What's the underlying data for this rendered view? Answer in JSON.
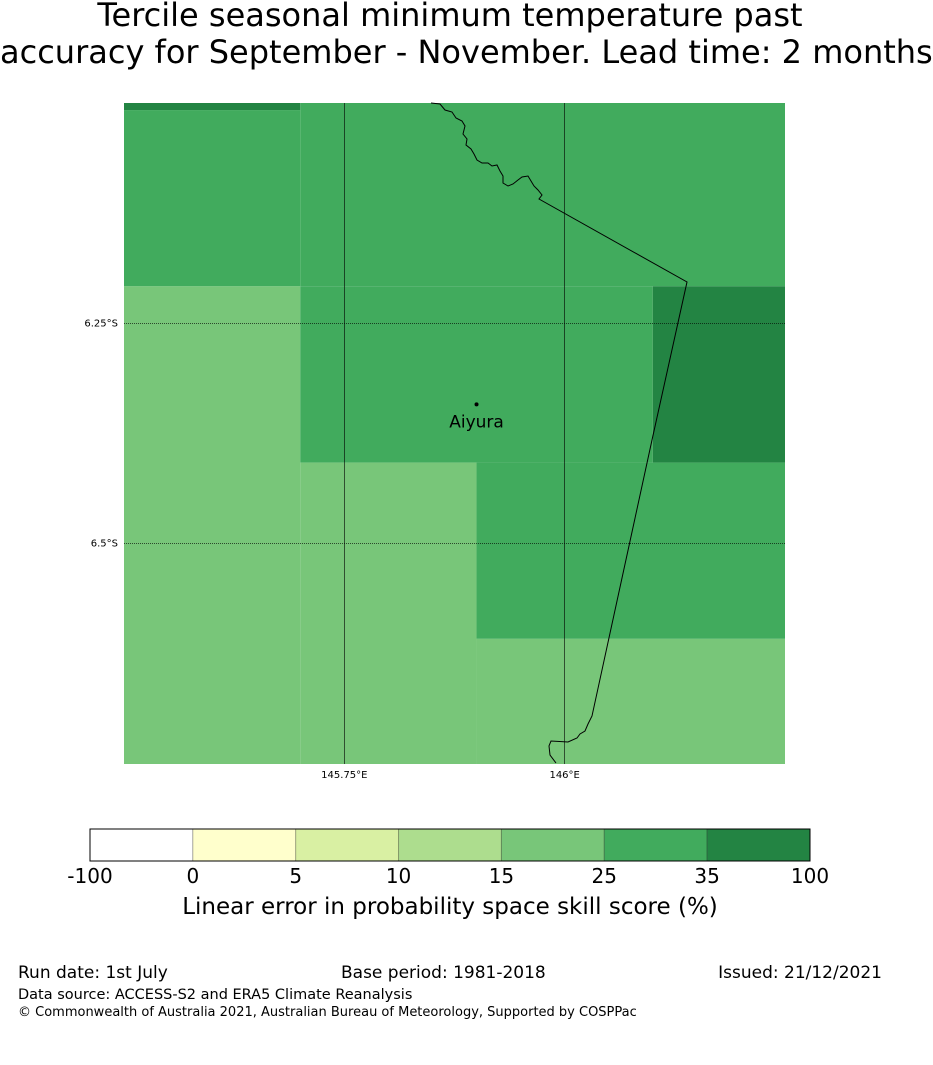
{
  "title": {
    "line1": "Tercile seasonal minimum temperature past",
    "line2": "accuracy for September - November. Lead time: 2 months"
  },
  "map": {
    "longitudes": [
      145.75,
      146.0
    ],
    "latitudes": [
      -6.25,
      -6.5
    ],
    "lon_labels": [
      "145.75°E",
      "146°E"
    ],
    "lat_labels": [
      "6.25°S",
      "6.5°S"
    ],
    "location": {
      "name": "Aiyura",
      "lon": 145.9,
      "lat": -6.342
    },
    "gridlines": true
  },
  "chart_data": {
    "type": "heatmap",
    "title": "Tercile seasonal minimum temperature past accuracy for September - November. Lead time: 2 months",
    "lon_range": [
      145.5,
      146.25
    ],
    "lat_range": [
      -6.75,
      -6.0
    ],
    "cell_size_deg": 0.2,
    "cells": [
      {
        "lon": [
          145.5,
          145.7
        ],
        "lat": [
          -6.0,
          -6.008
        ],
        "value_class": "35-100"
      },
      {
        "lon": [
          145.5,
          145.7
        ],
        "lat": [
          -6.008,
          -6.208
        ],
        "value_class": "25-35"
      },
      {
        "lon": [
          145.7,
          146.25
        ],
        "lat": [
          -6.0,
          -6.208
        ],
        "value_class": "25-35"
      },
      {
        "lon": [
          145.5,
          145.7
        ],
        "lat": [
          -6.208,
          -6.75
        ],
        "value_class": "15-25"
      },
      {
        "lon": [
          145.7,
          146.1
        ],
        "lat": [
          -6.208,
          -6.408
        ],
        "value_class": "25-35"
      },
      {
        "lon": [
          146.1,
          146.25
        ],
        "lat": [
          -6.208,
          -6.408
        ],
        "value_class": "35-100"
      },
      {
        "lon": [
          145.7,
          145.9
        ],
        "lat": [
          -6.408,
          -6.75
        ],
        "value_class": "15-25"
      },
      {
        "lon": [
          145.9,
          146.25
        ],
        "lat": [
          -6.408,
          -6.608
        ],
        "value_class": "25-35"
      },
      {
        "lon": [
          145.9,
          146.25
        ],
        "lat": [
          -6.608,
          -6.75
        ],
        "value_class": "15-25"
      }
    ],
    "legend": {
      "boundaries": [
        "-100",
        "0",
        "5",
        "10",
        "15",
        "25",
        "35",
        "100"
      ],
      "colors": [
        "#ffffff",
        "#ffffcc",
        "#d9f0a3",
        "#addd8e",
        "#78c679",
        "#41ab5d",
        "#238443"
      ],
      "label": "Linear error in probability space skill score (%)"
    }
  },
  "colors": {
    "35-100": "#238443",
    "25-35": "#41ab5d",
    "15-25": "#78c679"
  },
  "footer": {
    "run_date": "Run date: 1st July",
    "base_period": "Base period: 1981-2018",
    "issued": "Issued: 21/12/2021",
    "data_source": "Data source: ACCESS-S2 and ERA5 Climate Reanalysis",
    "copyright": "© Commonwealth of Australia 2021, Australian Bureau of Meteorology, Supported by COSPPac"
  }
}
